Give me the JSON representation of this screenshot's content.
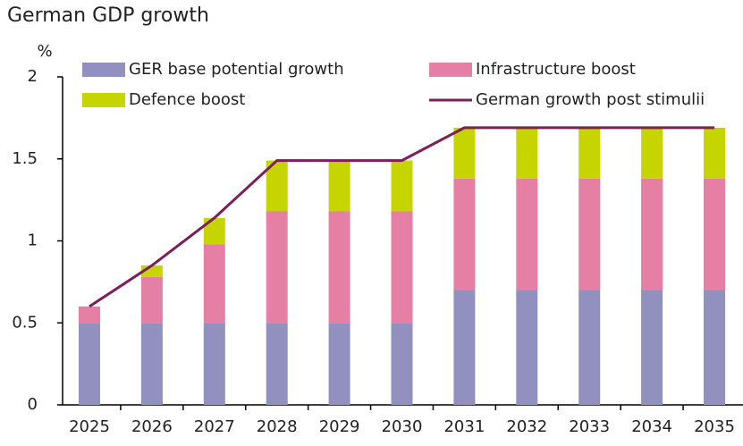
{
  "chart_data": {
    "type": "bar",
    "title": "German GDP growth",
    "y_label": "%",
    "categories": [
      "2025",
      "2026",
      "2027",
      "2028",
      "2029",
      "2030",
      "2031",
      "2032",
      "2033",
      "2034",
      "2035"
    ],
    "series": [
      {
        "name": "GER base potential growth",
        "color": "#9190bf",
        "values": [
          0.5,
          0.5,
          0.5,
          0.5,
          0.5,
          0.5,
          0.7,
          0.7,
          0.7,
          0.7,
          0.7
        ]
      },
      {
        "name": "Infrastructure boost",
        "color": "#e57fa3",
        "values": [
          0.1,
          0.28,
          0.48,
          0.68,
          0.68,
          0.68,
          0.68,
          0.68,
          0.68,
          0.68,
          0.68
        ]
      },
      {
        "name": "Defence boost",
        "color": "#c6d400",
        "values": [
          0,
          0.07,
          0.16,
          0.31,
          0.31,
          0.31,
          0.31,
          0.31,
          0.31,
          0.31,
          0.31
        ]
      },
      {
        "name": "German growth post stimulii",
        "color": "#7b1e5a",
        "type": "line",
        "values": [
          0.6,
          0.85,
          1.14,
          1.49,
          1.49,
          1.49,
          1.69,
          1.69,
          1.69,
          1.69,
          1.69
        ]
      }
    ],
    "ylim": [
      0,
      2
    ],
    "yticks": [
      0,
      0.5,
      1,
      1.5,
      2
    ]
  }
}
